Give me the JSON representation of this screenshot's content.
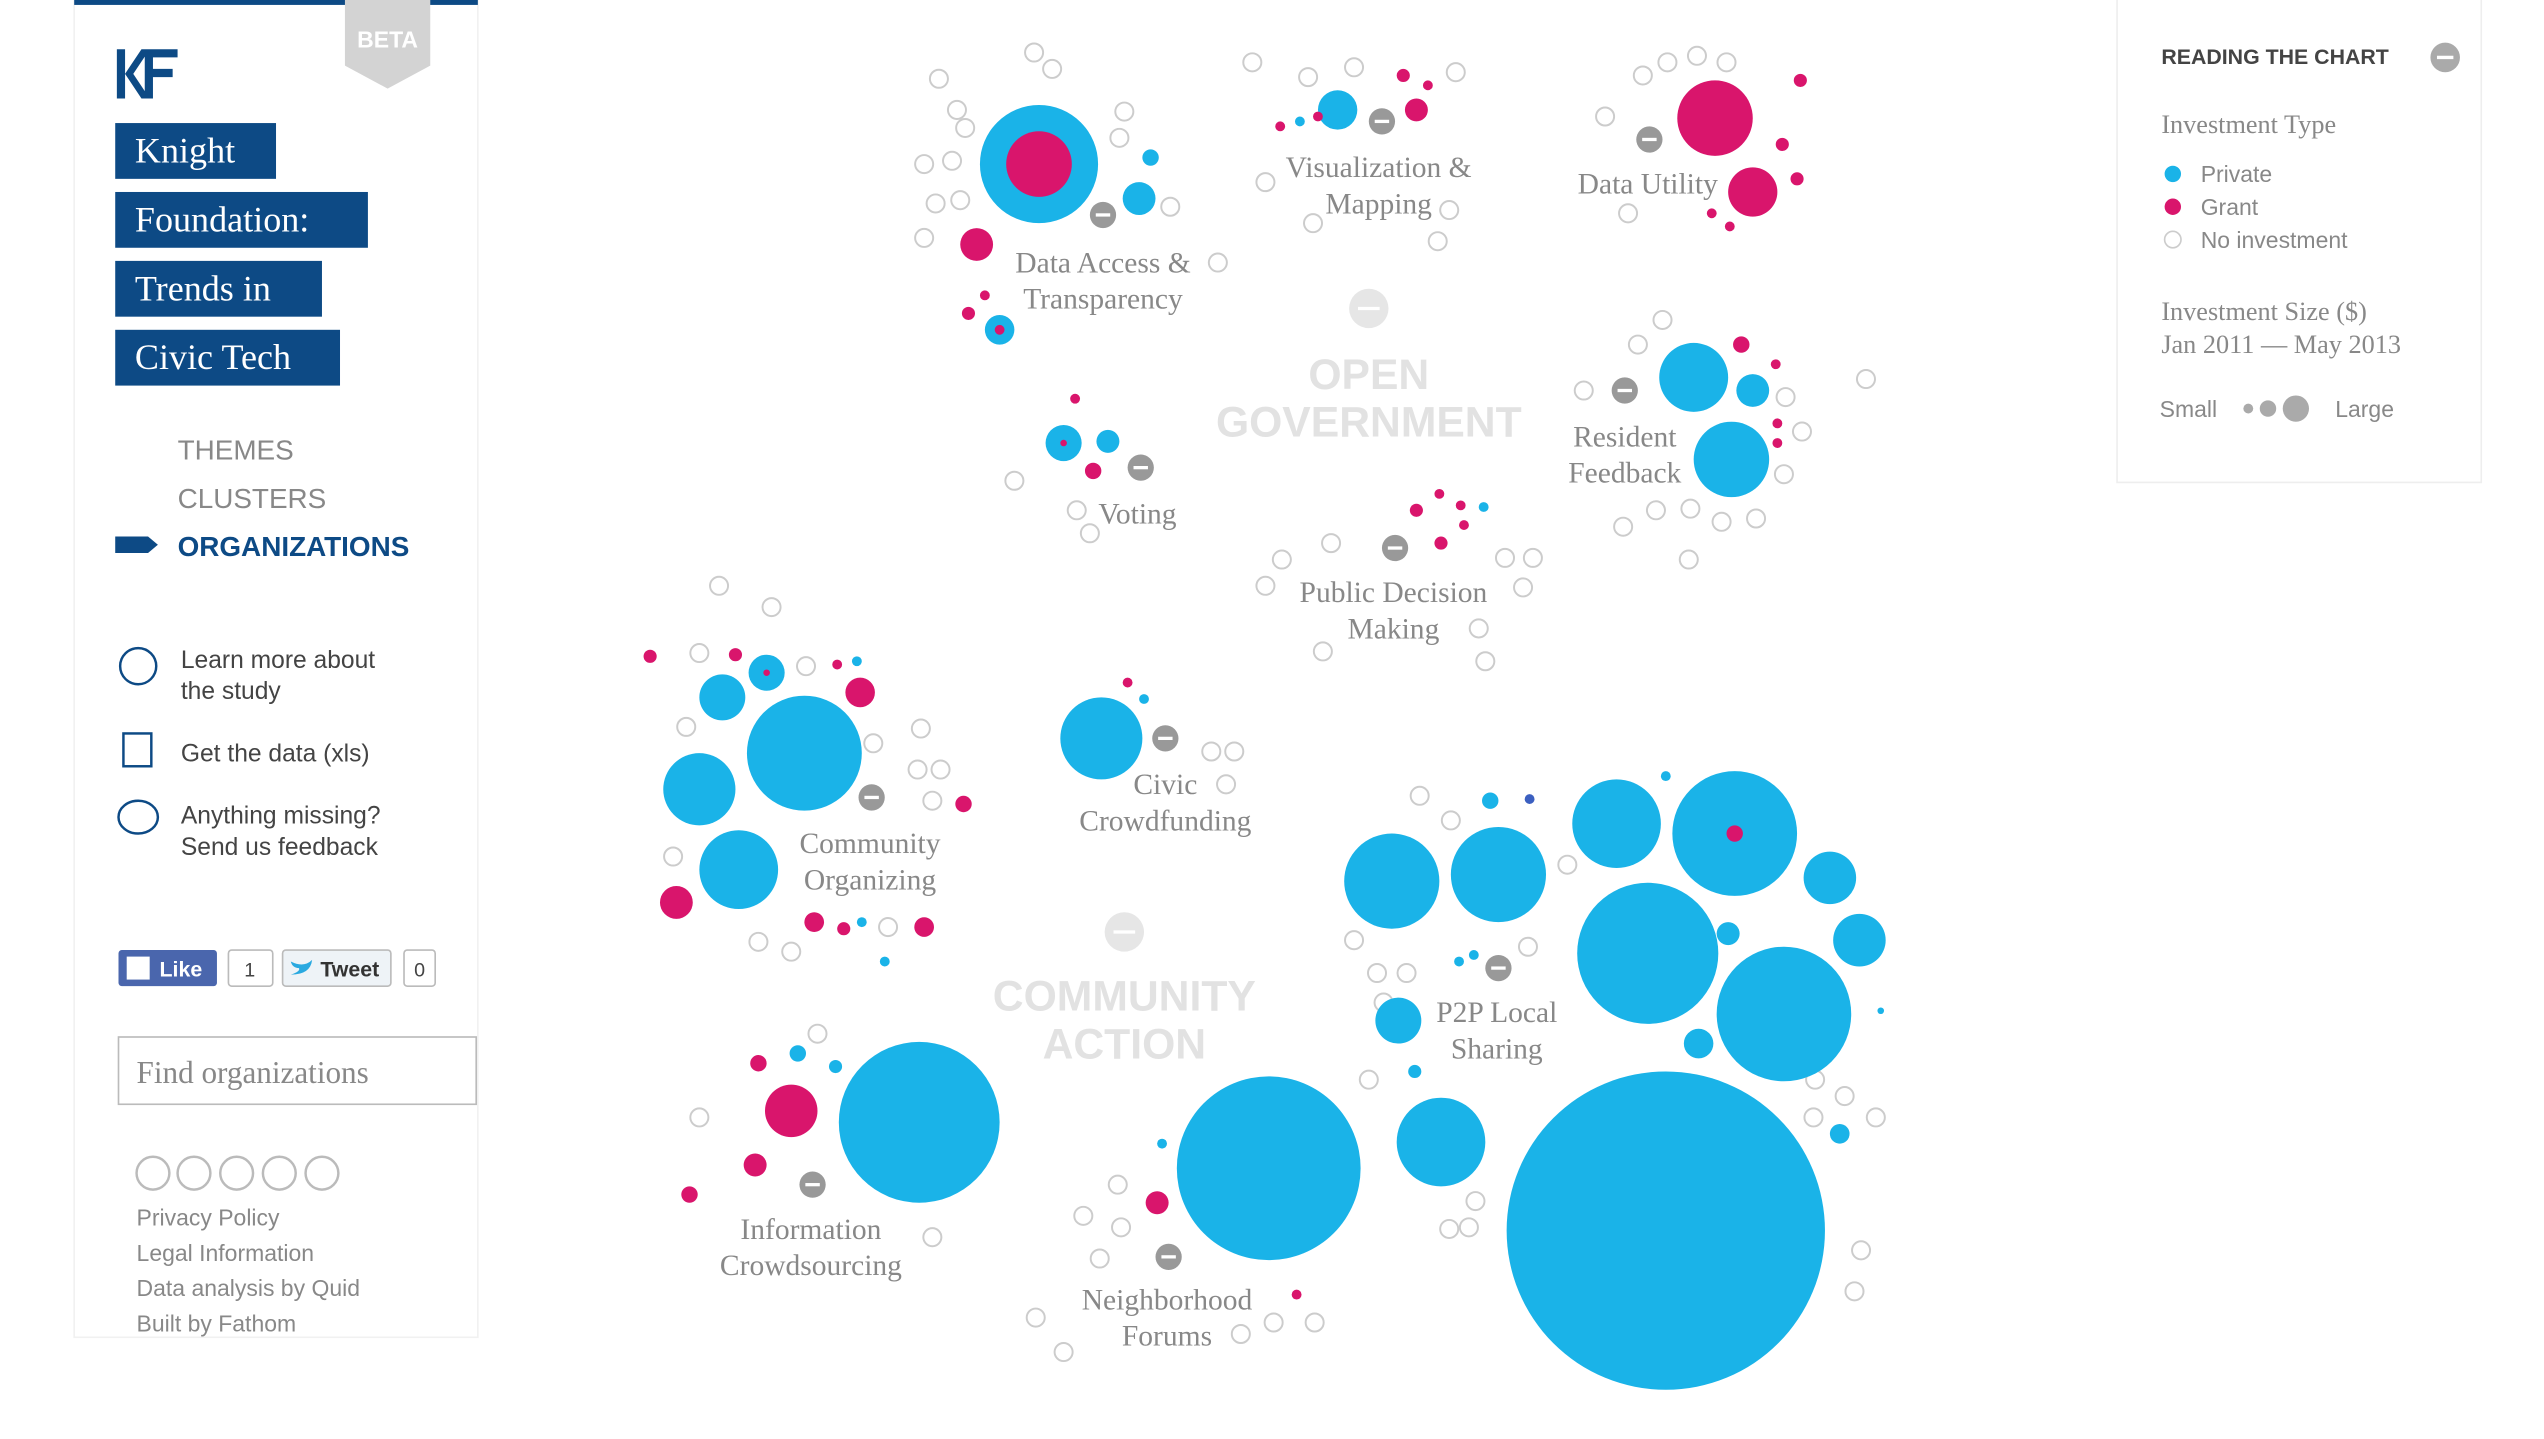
{
  "sidebar": {
    "beta": "BETA",
    "title_lines": [
      "Knight",
      "Foundation:",
      "Trends in",
      "Civic Tech"
    ],
    "nav": [
      "THEMES",
      "CLUSTERS",
      "ORGANIZATIONS"
    ],
    "links": [
      [
        "Learn more about",
        "the study"
      ],
      [
        "Get the data (xls)"
      ],
      [
        "Anything missing?",
        "Send us feedback"
      ]
    ],
    "social": {
      "like": "Like",
      "like_count": 1,
      "tweet": "Tweet",
      "tweet_count": 0
    },
    "search_placeholder": "Find organizations",
    "footer": [
      "Privacy Policy",
      "Legal Information",
      "Data analysis by Quid",
      "Built by Fathom"
    ]
  },
  "legend": {
    "title": "READING THE CHART",
    "type_heading": "Investment Type",
    "types": [
      "Private",
      "Grant",
      "No investment"
    ],
    "size_heading": [
      "Investment Size ($)",
      "Jan 2011 — May 2013"
    ],
    "small": "Small",
    "large": "Large"
  },
  "themes": [
    [
      "OPEN",
      "GOVERNMENT"
    ],
    [
      "COMMUNITY",
      "ACTION"
    ]
  ],
  "clusters": [
    [
      "Data Access &",
      "Transparency"
    ],
    [
      "Visualization &",
      "Mapping"
    ],
    [
      "Data Utility"
    ],
    [
      "Resident",
      "Feedback"
    ],
    [
      "Voting"
    ],
    [
      "Public Decision",
      "Making"
    ],
    [
      "Community",
      "Organizing"
    ],
    [
      "Civic",
      "Crowdfunding"
    ],
    [
      "P2P Local",
      "Sharing"
    ],
    [
      "Information",
      "Crowdsourcing"
    ],
    [
      "Neighborhood",
      "Forums"
    ]
  ]
}
